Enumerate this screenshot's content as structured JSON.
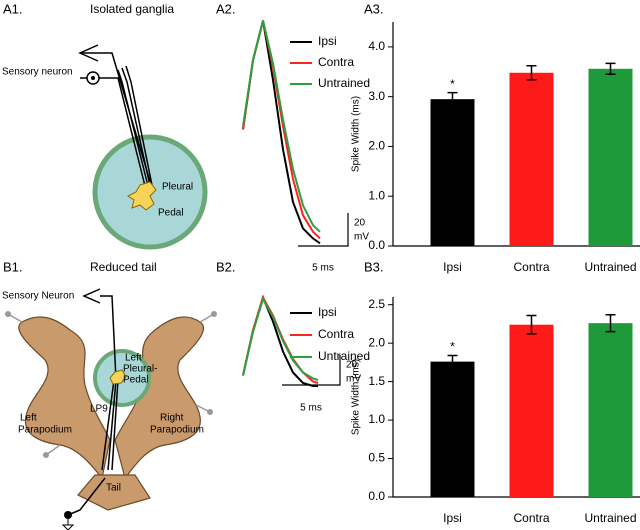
{
  "panel_labels": [
    "A1.",
    "A2.",
    "A3.",
    "B1.",
    "B2.",
    "B3."
  ],
  "diagrams": [
    {
      "title": "Isolated ganglia",
      "labels": [
        "Sensory neuron",
        "Pleural",
        "Pedal"
      ]
    },
    {
      "title": "Reduced tail",
      "labels": [
        "Sensory Neuron",
        "Left",
        "Pleural-",
        "Pedal",
        "LP9",
        "Left",
        "Parapodium",
        "Right",
        "Parapodium",
        "Tail"
      ]
    }
  ],
  "chart_data": [
    {
      "type": "line",
      "x": [
        0,
        1,
        2,
        3,
        4,
        5,
        6,
        7,
        7.7
      ],
      "xlim": [
        0,
        8
      ],
      "ylim": [
        0,
        140
      ],
      "series": [
        {
          "name": "Ipsi",
          "color": "#000000",
          "values": [
            70,
            112,
            136,
            100,
            58,
            26,
            10,
            4,
            1
          ]
        },
        {
          "name": "Contra",
          "color": "#ff2020",
          "values": [
            70,
            112,
            136,
            108,
            72,
            40,
            18,
            8,
            4
          ]
        },
        {
          "name": "Untrained",
          "color": "#2e9e3e",
          "values": [
            72,
            112,
            136,
            110,
            76,
            46,
            24,
            12,
            8
          ]
        }
      ],
      "scale_bars": {
        "y": [
          "20",
          "mV"
        ],
        "x": "5 ms"
      }
    },
    {
      "type": "bar",
      "y_label": "Spike Width (ms)",
      "categories": [
        "Ipsi",
        "Contra",
        "Untrained"
      ],
      "values": [
        2.95,
        3.48,
        3.56
      ],
      "errors": [
        0.13,
        0.14,
        0.11
      ],
      "significance": [
        "*",
        null,
        null
      ],
      "colors": [
        "#000000",
        "#ff1a1a",
        "#1f9a3a"
      ],
      "ylim": [
        0,
        4.5
      ],
      "yticks": [
        {
          "value": 0,
          "label": "0.0"
        },
        {
          "value": 1,
          "label": "1.0"
        },
        {
          "value": 2,
          "label": "2.0"
        },
        {
          "value": 3,
          "label": "3.0"
        },
        {
          "value": 4,
          "label": "4.0"
        }
      ]
    },
    {
      "type": "line",
      "x": [
        0,
        1,
        2,
        3,
        4,
        5,
        6,
        7,
        7.5
      ],
      "xlim": [
        0,
        8
      ],
      "ylim": [
        0,
        62
      ],
      "series": [
        {
          "name": "Ipsi",
          "color": "#000000",
          "values": [
            7,
            37,
            59,
            43,
            23,
            9,
            2,
            0,
            0
          ]
        },
        {
          "name": "Contra",
          "color": "#ff2020",
          "values": [
            7,
            37,
            59,
            47,
            31,
            18,
            9,
            3,
            2
          ]
        },
        {
          "name": "Untrained",
          "color": "#2e9e3e",
          "values": [
            7,
            36,
            58,
            46,
            30,
            17,
            9,
            5,
            4
          ]
        }
      ],
      "scale_bars": {
        "y": [
          "20",
          "mV"
        ],
        "x": "5 ms"
      }
    },
    {
      "type": "bar",
      "y_label": "Spike Width (ms)",
      "categories": [
        "Ipsi",
        "Contra",
        "Untrained"
      ],
      "values": [
        1.76,
        2.24,
        2.26
      ],
      "errors": [
        0.08,
        0.12,
        0.11
      ],
      "significance": [
        "*",
        null,
        null
      ],
      "colors": [
        "#000000",
        "#ff1a1a",
        "#1f9a3a"
      ],
      "ylim": [
        0,
        2.6
      ],
      "yticks": [
        {
          "value": 0,
          "label": "0.0"
        },
        {
          "value": 0.5,
          "label": "0.5"
        },
        {
          "value": 1,
          "label": "1.0"
        },
        {
          "value": 1.5,
          "label": "1.5"
        },
        {
          "value": 2,
          "label": "2.0"
        },
        {
          "value": 2.5,
          "label": "2.5"
        }
      ]
    }
  ]
}
